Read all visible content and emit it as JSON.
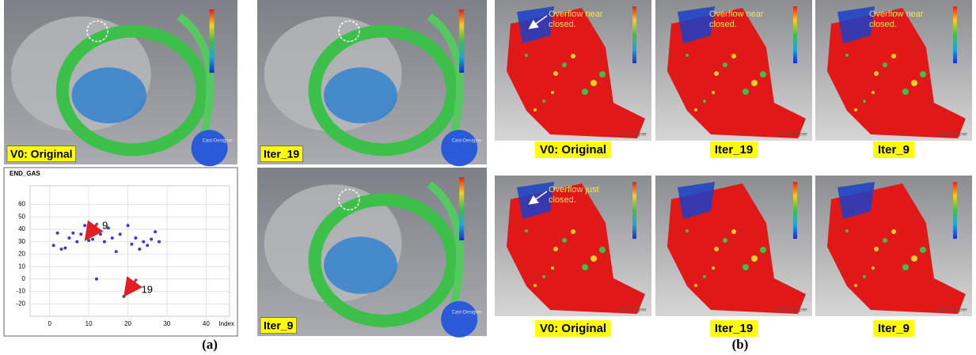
{
  "panel_a": {
    "caption": "(a)",
    "images": [
      {
        "label": "V0: Original"
      },
      {
        "label": "Iter_19"
      },
      {
        "label": "Iter_9"
      }
    ]
  },
  "chart_data": {
    "type": "scatter",
    "title": "END_GAS",
    "x_label": "Index",
    "x": [
      1,
      2,
      3,
      4,
      5,
      6,
      7,
      8,
      9,
      10,
      11,
      12,
      13,
      14,
      15,
      16,
      17,
      18,
      19,
      20,
      21,
      22,
      23,
      24,
      25,
      26,
      27,
      28
    ],
    "values": [
      27,
      37,
      24,
      25,
      33,
      37,
      30,
      36,
      43,
      31,
      32,
      0,
      36,
      30,
      41,
      33,
      22,
      36,
      -14,
      43,
      28,
      33,
      24,
      30,
      27,
      32,
      38,
      30
    ],
    "color": "#3a3ad6",
    "xlim": [
      -5,
      46
    ],
    "ylim": [
      -30,
      75
    ],
    "xticks": [
      0,
      10,
      20,
      30,
      40
    ],
    "yticks": [
      -20,
      -10,
      0,
      10,
      20,
      30,
      40,
      50,
      60
    ],
    "grid": true,
    "annotations": [
      {
        "text": "9",
        "x": 9,
        "y": 31
      },
      {
        "text": "19",
        "x": 19,
        "y": -14
      }
    ]
  },
  "panel_b": {
    "caption": "(b)",
    "rows": [
      {
        "images": [
          {
            "label": "V0: Original",
            "note": "Overflow near closed."
          },
          {
            "label": "Iter_19",
            "note": "Overflow near closed."
          },
          {
            "label": "Iter_9",
            "note": "Overflow near closed."
          }
        ]
      },
      {
        "images": [
          {
            "label": "V0: Original",
            "note": "Overflow just closed."
          },
          {
            "label": "Iter_19"
          },
          {
            "label": "Iter_9"
          }
        ]
      }
    ]
  },
  "watermark": "Cast-Designer"
}
